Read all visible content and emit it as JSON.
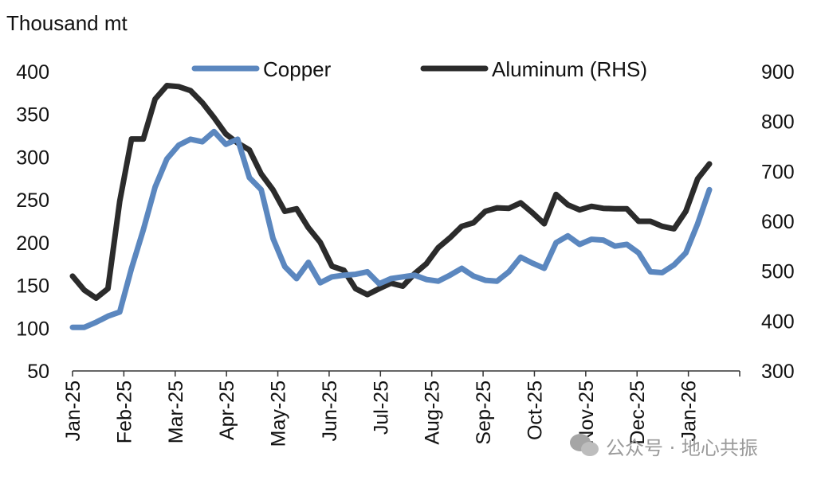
{
  "watermark": "公众号 · 地心共振",
  "colors": {
    "copper": "#5b87bf",
    "aluminum": "#2b2b2b",
    "axis": "#333333",
    "watermark": "#9a9a9a"
  },
  "chart_data": {
    "type": "line",
    "title": "",
    "ylabel": "Thousand mt",
    "xlabel": "",
    "grid": false,
    "legend": "top-center",
    "x_labels": [
      "Jan-25",
      "Feb-25",
      "Mar-25",
      "Apr-25",
      "May-25",
      "Jun-25",
      "Jul-25",
      "Aug-25",
      "Sep-25",
      "Oct-25",
      "Nov-25",
      "Dec-25",
      "Jan-26"
    ],
    "ylim_left": [
      50,
      400
    ],
    "yticks_left": [
      50,
      100,
      150,
      200,
      250,
      300,
      350,
      400
    ],
    "ylim_right": [
      300,
      900
    ],
    "yticks_right": [
      300,
      400,
      500,
      600,
      700,
      800,
      900
    ],
    "series": [
      {
        "name": "Copper",
        "axis": "left",
        "x": [
          "2025-01-01",
          "2025-01-08",
          "2025-01-15",
          "2025-01-22",
          "2025-01-29",
          "2025-02-05",
          "2025-02-12",
          "2025-02-19",
          "2025-02-26",
          "2025-03-05",
          "2025-03-12",
          "2025-03-19",
          "2025-03-26",
          "2025-04-02",
          "2025-04-09",
          "2025-04-16",
          "2025-04-23",
          "2025-04-30",
          "2025-05-07",
          "2025-05-14",
          "2025-05-21",
          "2025-05-28",
          "2025-06-04",
          "2025-06-11",
          "2025-06-18",
          "2025-06-25",
          "2025-07-02",
          "2025-07-09",
          "2025-07-16",
          "2025-07-23",
          "2025-07-30",
          "2025-08-06",
          "2025-08-13",
          "2025-08-20",
          "2025-08-27",
          "2025-09-03",
          "2025-09-10",
          "2025-09-17",
          "2025-09-24",
          "2025-10-01",
          "2025-10-08",
          "2025-10-15",
          "2025-10-22",
          "2025-10-29",
          "2025-11-05",
          "2025-11-12",
          "2025-11-19",
          "2025-11-26",
          "2025-12-03",
          "2025-12-10",
          "2025-12-17",
          "2025-12-24",
          "2025-12-31",
          "2026-01-07",
          "2026-01-14"
        ],
        "values": [
          101,
          101,
          107,
          114,
          119,
          170,
          215,
          265,
          298,
          314,
          321,
          318,
          330,
          315,
          321,
          276,
          262,
          205,
          172,
          158,
          177,
          153,
          160,
          162,
          163,
          166,
          152,
          158,
          160,
          162,
          157,
          155,
          162,
          170,
          161,
          156,
          155,
          166,
          183,
          176,
          170,
          200,
          208,
          198,
          204,
          203,
          196,
          198,
          188,
          166,
          165,
          174,
          188,
          222,
          262
        ]
      },
      {
        "name": "Aluminum (RHS)",
        "axis": "right",
        "x": [
          "2025-01-01",
          "2025-01-08",
          "2025-01-15",
          "2025-01-22",
          "2025-01-29",
          "2025-02-05",
          "2025-02-12",
          "2025-02-19",
          "2025-02-26",
          "2025-03-05",
          "2025-03-12",
          "2025-03-19",
          "2025-03-26",
          "2025-04-02",
          "2025-04-09",
          "2025-04-16",
          "2025-04-23",
          "2025-04-30",
          "2025-05-07",
          "2025-05-14",
          "2025-05-21",
          "2025-05-28",
          "2025-06-04",
          "2025-06-11",
          "2025-06-18",
          "2025-06-25",
          "2025-07-02",
          "2025-07-09",
          "2025-07-16",
          "2025-07-23",
          "2025-07-30",
          "2025-08-06",
          "2025-08-13",
          "2025-08-20",
          "2025-08-27",
          "2025-09-03",
          "2025-09-10",
          "2025-09-17",
          "2025-09-24",
          "2025-10-01",
          "2025-10-08",
          "2025-10-15",
          "2025-10-22",
          "2025-10-29",
          "2025-11-05",
          "2025-11-12",
          "2025-11-19",
          "2025-11-26",
          "2025-12-03",
          "2025-12-10",
          "2025-12-17",
          "2025-12-24",
          "2025-12-31",
          "2026-01-07",
          "2026-01-14"
        ],
        "values": [
          490,
          462,
          446,
          465,
          640,
          765,
          765,
          845,
          872,
          870,
          862,
          838,
          808,
          775,
          757,
          743,
          695,
          663,
          620,
          625,
          587,
          558,
          510,
          502,
          465,
          453,
          465,
          476,
          470,
          495,
          515,
          547,
          567,
          590,
          597,
          620,
          627,
          626,
          637,
          617,
          595,
          654,
          633,
          623,
          630,
          626,
          625,
          625,
          600,
          600,
          590,
          585,
          620,
          685,
          715
        ]
      }
    ]
  }
}
